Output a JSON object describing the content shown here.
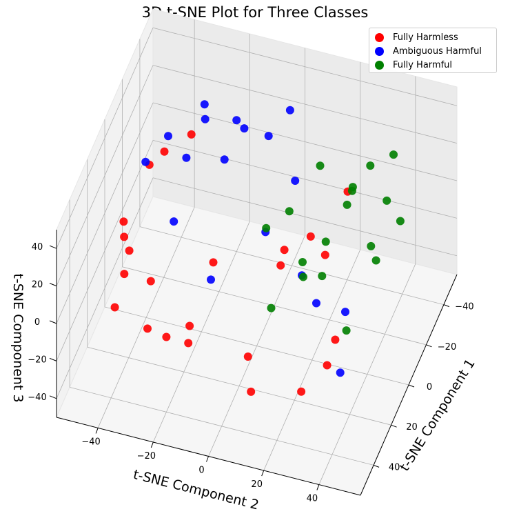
{
  "chart_data": {
    "type": "scatter",
    "projection": "3d",
    "title": "3D t-SNE Plot for Three Classes",
    "xlabel": "t-SNE Component 1",
    "ylabel": "t-SNE Component 2",
    "zlabel": "t-SNE Component 3",
    "xlim": [
      -55,
      55
    ],
    "ylim": [
      -55,
      55
    ],
    "zlim": [
      -50,
      50
    ],
    "x_ticks": [
      -40,
      -20,
      0,
      20,
      40
    ],
    "y_ticks": [
      -40,
      -20,
      0,
      20,
      40
    ],
    "z_ticks": [
      -40,
      -20,
      0,
      20,
      40
    ],
    "grid": true,
    "legend_position": "top-right",
    "series": [
      {
        "name": "Fully Harmless",
        "color": "#ff0000",
        "values": [
          {
            "x": 10,
            "y": -45,
            "z": 10
          },
          {
            "x": 25,
            "y": -40,
            "z": 0
          },
          {
            "x": 0,
            "y": -48,
            "z": -10
          },
          {
            "x": -10,
            "y": -42,
            "z": 20
          },
          {
            "x": 30,
            "y": -30,
            "z": -20
          },
          {
            "x": 40,
            "y": -20,
            "z": -10
          },
          {
            "x": 35,
            "y": -35,
            "z": 25
          },
          {
            "x": 20,
            "y": -45,
            "z": -25
          },
          {
            "x": 45,
            "y": -10,
            "z": 5
          },
          {
            "x": 38,
            "y": 10,
            "z": -30
          },
          {
            "x": 28,
            "y": 25,
            "z": -35
          },
          {
            "x": 15,
            "y": -20,
            "z": -40
          },
          {
            "x": -5,
            "y": -35,
            "z": 35
          },
          {
            "x": -20,
            "y": -30,
            "z": 30
          },
          {
            "x": 10,
            "y": 0,
            "z": -45
          },
          {
            "x": 0,
            "y": 10,
            "z": 5
          },
          {
            "x": -15,
            "y": 20,
            "z": -10
          },
          {
            "x": 20,
            "y": 15,
            "z": 20
          },
          {
            "x": 5,
            "y": 30,
            "z": -30
          },
          {
            "x": -25,
            "y": 25,
            "z": 15
          },
          {
            "x": 42,
            "y": -25,
            "z": 20
          },
          {
            "x": 30,
            "y": 35,
            "z": -15
          },
          {
            "x": -30,
            "y": 10,
            "z": -20
          },
          {
            "x": 18,
            "y": -10,
            "z": 10
          }
        ]
      },
      {
        "name": "Ambiguous Harmful",
        "color": "#0000ff",
        "values": [
          {
            "x": -40,
            "y": -20,
            "z": 20
          },
          {
            "x": -35,
            "y": -30,
            "z": 30
          },
          {
            "x": -45,
            "y": -10,
            "z": 10
          },
          {
            "x": -30,
            "y": -35,
            "z": 5
          },
          {
            "x": -38,
            "y": 0,
            "z": 35
          },
          {
            "x": -25,
            "y": -40,
            "z": 20
          },
          {
            "x": -20,
            "y": -25,
            "z": 40
          },
          {
            "x": -42,
            "y": -25,
            "z": -5
          },
          {
            "x": -15,
            "y": -45,
            "z": 15
          },
          {
            "x": -33,
            "y": -15,
            "z": 25
          },
          {
            "x": -10,
            "y": 0,
            "z": 0
          },
          {
            "x": 5,
            "y": -15,
            "z": -15
          },
          {
            "x": -5,
            "y": 20,
            "z": -25
          },
          {
            "x": 15,
            "y": 35,
            "z": -35
          },
          {
            "x": 25,
            "y": 40,
            "z": 10
          },
          {
            "x": -20,
            "y": 10,
            "z": -30
          },
          {
            "x": 0,
            "y": -30,
            "z": 5
          },
          {
            "x": -28,
            "y": 5,
            "z": 10
          }
        ]
      },
      {
        "name": "Fully Harmful",
        "color": "#008000",
        "values": [
          {
            "x": -30,
            "y": 25,
            "z": 10
          },
          {
            "x": -20,
            "y": 35,
            "z": -5
          },
          {
            "x": -35,
            "y": 30,
            "z": 20
          },
          {
            "x": -10,
            "y": 40,
            "z": 0
          },
          {
            "x": -25,
            "y": 15,
            "z": 25
          },
          {
            "x": -40,
            "y": 20,
            "z": -10
          },
          {
            "x": 0,
            "y": 25,
            "z": 15
          },
          {
            "x": -15,
            "y": 30,
            "z": 30
          },
          {
            "x": -5,
            "y": 15,
            "z": -5
          },
          {
            "x": 10,
            "y": 20,
            "z": 5
          },
          {
            "x": -30,
            "y": 40,
            "z": 35
          },
          {
            "x": -22,
            "y": 45,
            "z": 10
          },
          {
            "x": 5,
            "y": 5,
            "z": 20
          },
          {
            "x": 15,
            "y": 10,
            "z": -10
          },
          {
            "x": -12,
            "y": 8,
            "z": 12
          },
          {
            "x": 20,
            "y": 30,
            "z": 20
          },
          {
            "x": -38,
            "y": 35,
            "z": 0
          },
          {
            "x": 8,
            "y": 35,
            "z": -20
          }
        ]
      }
    ]
  }
}
